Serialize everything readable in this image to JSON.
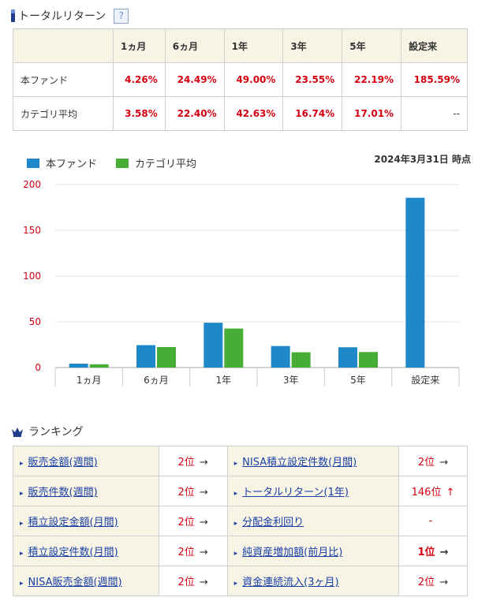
{
  "returns": {
    "title": "トータルリターン",
    "help": "?",
    "headers": [
      "",
      "1ヵ月",
      "6ヵ月",
      "1年",
      "3年",
      "5年",
      "設定来"
    ],
    "rows": [
      {
        "label": "本ファンド",
        "values": [
          "4.26%",
          "24.49%",
          "49.00%",
          "23.55%",
          "22.19%",
          "185.59%"
        ]
      },
      {
        "label": "カテゴリ平均",
        "values": [
          "3.58%",
          "22.40%",
          "42.63%",
          "16.74%",
          "17.01%",
          "--"
        ]
      }
    ]
  },
  "legend": {
    "fund": "本ファンド",
    "category": "カテゴリ平均"
  },
  "as_of": "2024年3月31日 時点",
  "colors": {
    "fund": "#1e88c9",
    "category": "#47ad34",
    "accent": "#d40010"
  },
  "chart_data": {
    "type": "bar",
    "categories": [
      "1ヵ月",
      "6ヵ月",
      "1年",
      "3年",
      "5年",
      "設定来"
    ],
    "series": [
      {
        "name": "本ファンド",
        "values": [
          4.26,
          24.49,
          49.0,
          23.55,
          22.19,
          185.59
        ]
      },
      {
        "name": "カテゴリ平均",
        "values": [
          3.58,
          22.4,
          42.63,
          16.74,
          17.01,
          null
        ]
      }
    ],
    "yticks": [
      "0",
      "50",
      "100",
      "150",
      "200"
    ],
    "ylim": [
      0,
      200
    ],
    "grid": true
  },
  "ranking": {
    "title": "ランキング",
    "rows": [
      [
        {
          "name": "販売金額(週間)",
          "rank": "2位",
          "arrow": "→"
        },
        {
          "name": "NISA積立設定件数(月間)",
          "rank": "2位",
          "arrow": "→"
        }
      ],
      [
        {
          "name": "販売件数(週間)",
          "rank": "2位",
          "arrow": "→"
        },
        {
          "name": "トータルリターン(1年)",
          "rank": "146位",
          "arrow": "↑"
        }
      ],
      [
        {
          "name": "積立設定金額(月間)",
          "rank": "2位",
          "arrow": "→"
        },
        {
          "name": "分配金利回り",
          "rank": "-",
          "arrow": ""
        }
      ],
      [
        {
          "name": "積立設定件数(月間)",
          "rank": "2位",
          "arrow": "→"
        },
        {
          "name": "純資産増加額(前月比)",
          "rank": "1位",
          "arrow": "→"
        }
      ],
      [
        {
          "name": "NISA販売金額(週間)",
          "rank": "2位",
          "arrow": "→"
        },
        {
          "name": "資金連続流入(3ヶ月)",
          "rank": "2位",
          "arrow": "→"
        }
      ]
    ]
  }
}
